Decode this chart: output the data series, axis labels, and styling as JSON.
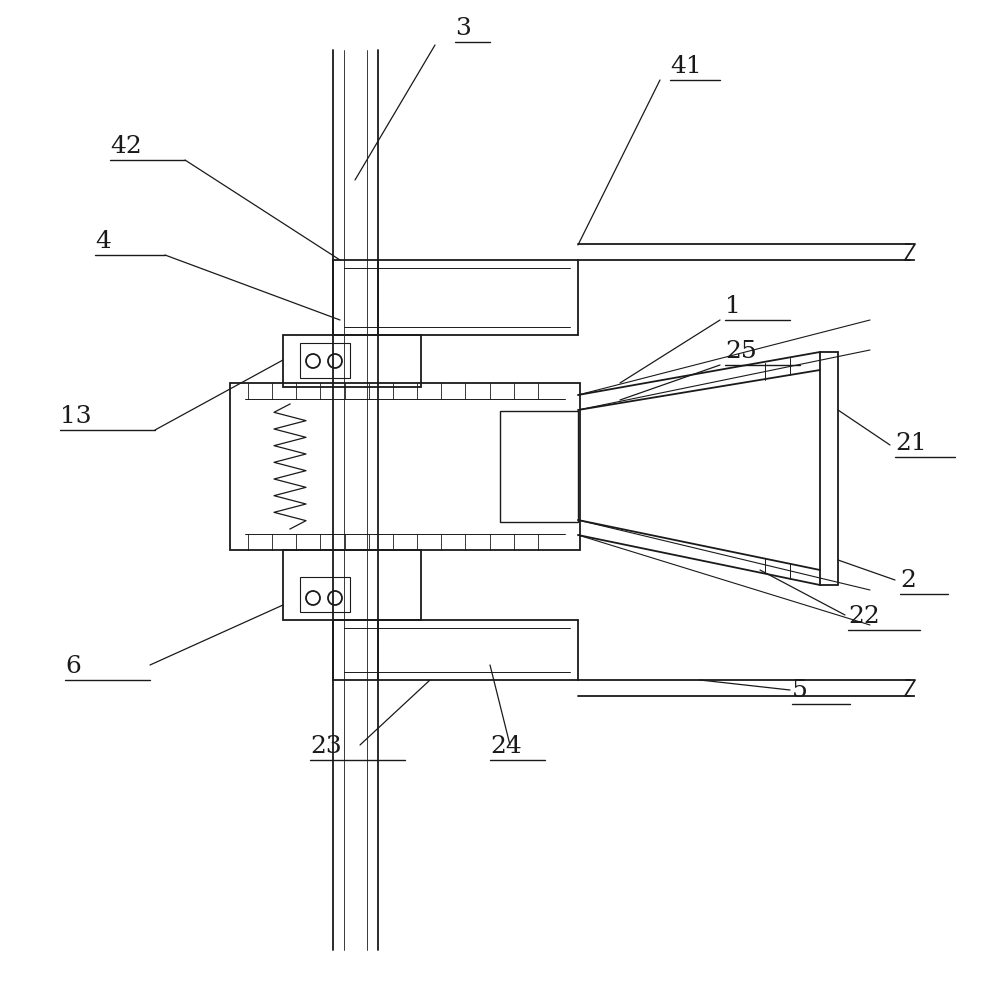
{
  "bg_color": "#ffffff",
  "line_color": "#1a1a1a",
  "lw_main": 1.3,
  "lw_thin": 0.8,
  "font_size": 18,
  "font_size_label": 18
}
